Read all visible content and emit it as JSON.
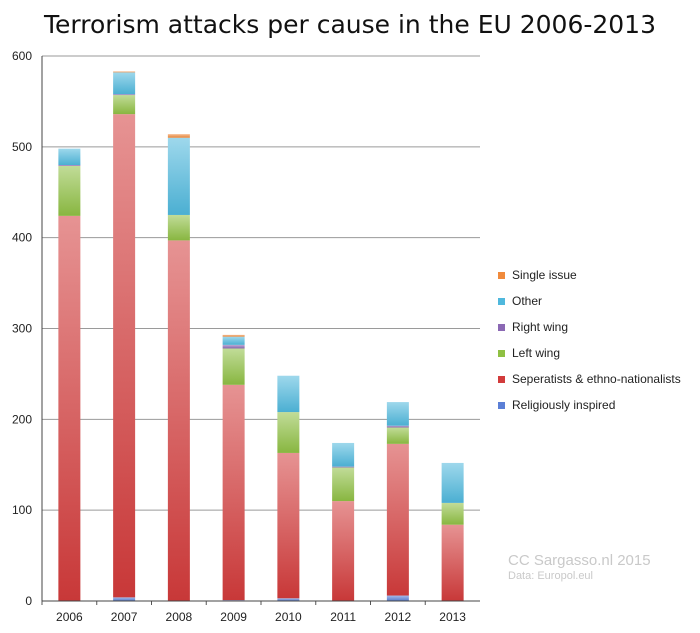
{
  "chart_data": {
    "type": "bar",
    "stacked": true,
    "title": "Terrorism attacks per cause in the EU 2006-2013",
    "xlabel": "",
    "ylabel": "",
    "ylim": [
      0,
      600
    ],
    "yticks": [
      0,
      100,
      200,
      300,
      400,
      500,
      600
    ],
    "grid": true,
    "legend_position": "right",
    "categories": [
      "2006",
      "2007",
      "2008",
      "2009",
      "2010",
      "2011",
      "2012",
      "2013"
    ],
    "series": [
      {
        "name": "Religiously inspired",
        "color": "#5b7fd6",
        "values": [
          0,
          4,
          0,
          1,
          3,
          0,
          6,
          0
        ]
      },
      {
        "name": "Seperatists & ethno-nationalists",
        "color": "#d23b3b",
        "values": [
          424,
          532,
          397,
          237,
          160,
          110,
          167,
          84
        ]
      },
      {
        "name": "Left wing",
        "color": "#8fc043",
        "values": [
          55,
          21,
          28,
          40,
          45,
          37,
          18,
          24
        ]
      },
      {
        "name": "Right wing",
        "color": "#8b68b4",
        "values": [
          1,
          1,
          0,
          4,
          0,
          1,
          2,
          0
        ]
      },
      {
        "name": "Other",
        "color": "#4fb8dd",
        "values": [
          18,
          24,
          85,
          9,
          40,
          26,
          26,
          44
        ]
      },
      {
        "name": "Single issue",
        "color": "#f08a3c",
        "values": [
          0,
          1,
          4,
          2,
          0,
          0,
          0,
          0
        ]
      }
    ],
    "legend_order": [
      "Single issue",
      "Other",
      "Right wing",
      "Left wing",
      "Seperatists & ethno-nationalists",
      "Religiously inspired"
    ]
  },
  "credit": {
    "line1": "CC Sargasso.nl 2015",
    "line2": "Data: Europol.eul"
  }
}
